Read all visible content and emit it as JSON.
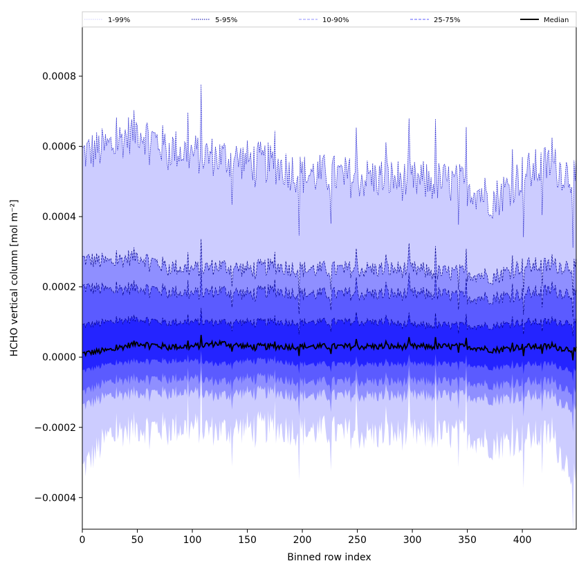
{
  "chart_data": {
    "type": "area",
    "xlabel": "Binned row index",
    "ylabel": "HCHO vertical column [mol m⁻²]",
    "xlim": [
      0,
      449
    ],
    "ylim": [
      -0.00049,
      0.00094
    ],
    "x_ticks": [
      0,
      50,
      100,
      150,
      200,
      250,
      300,
      350,
      400
    ],
    "x_tick_labels": [
      "0",
      "50",
      "100",
      "150",
      "200",
      "250",
      "300",
      "350",
      "400"
    ],
    "y_ticks": [
      -0.0004,
      -0.0002,
      0.0,
      0.0002,
      0.0004,
      0.0006,
      0.0008
    ],
    "y_tick_labels": [
      "−0.0004",
      "−0.0002",
      "0.0000",
      "0.0002",
      "0.0004",
      "0.0006",
      "0.0008"
    ],
    "grid": false,
    "legend_position": "top, horizontal strip above plot",
    "legend": [
      {
        "label": "1-99%",
        "color": "#ccccff",
        "style": "dotted"
      },
      {
        "label": "5-95%",
        "color": "#0000aa",
        "style": "dotted"
      },
      {
        "label": "10-90%",
        "color": "#8f8fff",
        "style": "dashed"
      },
      {
        "label": "25-75%",
        "color": "#5b5bff",
        "style": "dashed"
      },
      {
        "label": "Median",
        "color": "#000000",
        "style": "solid"
      }
    ],
    "band_colors": {
      "p1_p99": "#ccccff",
      "p5_p95": "#8f8fff",
      "p10_p90": "#5b5bff",
      "p25_p75": "#2424ff"
    },
    "x_sample": [
      0,
      25,
      50,
      75,
      100,
      125,
      150,
      175,
      200,
      225,
      250,
      275,
      300,
      325,
      350,
      375,
      400,
      425,
      449
    ],
    "series": [
      {
        "name": "1-99%",
        "upper": [
          0.00058,
          0.0006,
          0.00065,
          0.0006,
          0.00058,
          0.00057,
          0.00056,
          0.00055,
          0.00052,
          0.00052,
          0.00051,
          0.00051,
          0.0005,
          0.0005,
          0.00049,
          0.00045,
          0.00052,
          0.00055,
          0.00051
        ],
        "lower": [
          -0.00032,
          -0.00022,
          -0.0002,
          -0.0002,
          -0.0002,
          -0.00021,
          -0.0002,
          -0.0002,
          -0.00021,
          -0.00021,
          -0.00022,
          -0.00022,
          -0.00022,
          -0.00022,
          -0.00022,
          -0.00025,
          -0.00023,
          -0.00022,
          -0.00035
        ]
      },
      {
        "name": "5-95%",
        "upper": [
          0.00028,
          0.00027,
          0.00029,
          0.00026,
          0.00025,
          0.00026,
          0.00025,
          0.00026,
          0.00025,
          0.00025,
          0.00025,
          0.00025,
          0.00025,
          0.00024,
          0.00024,
          0.00023,
          0.00026,
          0.00026,
          0.00026
        ],
        "lower": [
          -0.00014,
          -0.00011,
          -0.0001,
          -0.0001,
          -0.0001,
          -0.00011,
          -0.0001,
          -0.0001,
          -0.00011,
          -0.00011,
          -0.00011,
          -0.00011,
          -0.00011,
          -0.00011,
          -0.00011,
          -0.00012,
          -0.00011,
          -0.00011,
          -0.00015
        ]
      },
      {
        "name": "10-90%",
        "upper": [
          0.0002,
          0.00019,
          0.0002,
          0.00019,
          0.00018,
          0.00019,
          0.00018,
          0.00019,
          0.00018,
          0.00018,
          0.00018,
          0.00018,
          0.00018,
          0.00018,
          0.00017,
          0.00017,
          0.00018,
          0.00019,
          0.00018
        ],
        "lower": [
          -0.0001,
          -7e-05,
          -6e-05,
          -6e-05,
          -6e-05,
          -7e-05,
          -6e-05,
          -6e-05,
          -7e-05,
          -7e-05,
          -7e-05,
          -7e-05,
          -7e-05,
          -7e-05,
          -7e-05,
          -8e-05,
          -7e-05,
          -7e-05,
          -0.0001
        ]
      },
      {
        "name": "25-75%",
        "upper": [
          9e-05,
          0.0001,
          0.00011,
          0.0001,
          0.0001,
          0.0001,
          0.0001,
          0.0001,
          0.0001,
          0.0001,
          0.0001,
          0.0001,
          9e-05,
          9e-05,
          9e-05,
          9e-05,
          0.0001,
          0.0001,
          0.0001
        ],
        "lower": [
          -4e-05,
          -2e-05,
          -1e-05,
          -1e-05,
          -1e-05,
          -2e-05,
          -1e-05,
          -1e-05,
          -2e-05,
          -2e-05,
          -2e-05,
          -2e-05,
          -2e-05,
          -2e-05,
          -2e-05,
          -3e-05,
          -2e-05,
          -2e-05,
          -4e-05
        ]
      },
      {
        "name": "Median",
        "values": [
          1e-05,
          2e-05,
          4e-05,
          3e-05,
          3e-05,
          4e-05,
          3e-05,
          3e-05,
          3e-05,
          3e-05,
          3e-05,
          3e-05,
          3e-05,
          3e-05,
          3e-05,
          2e-05,
          3e-05,
          3e-05,
          2e-05
        ]
      }
    ]
  }
}
